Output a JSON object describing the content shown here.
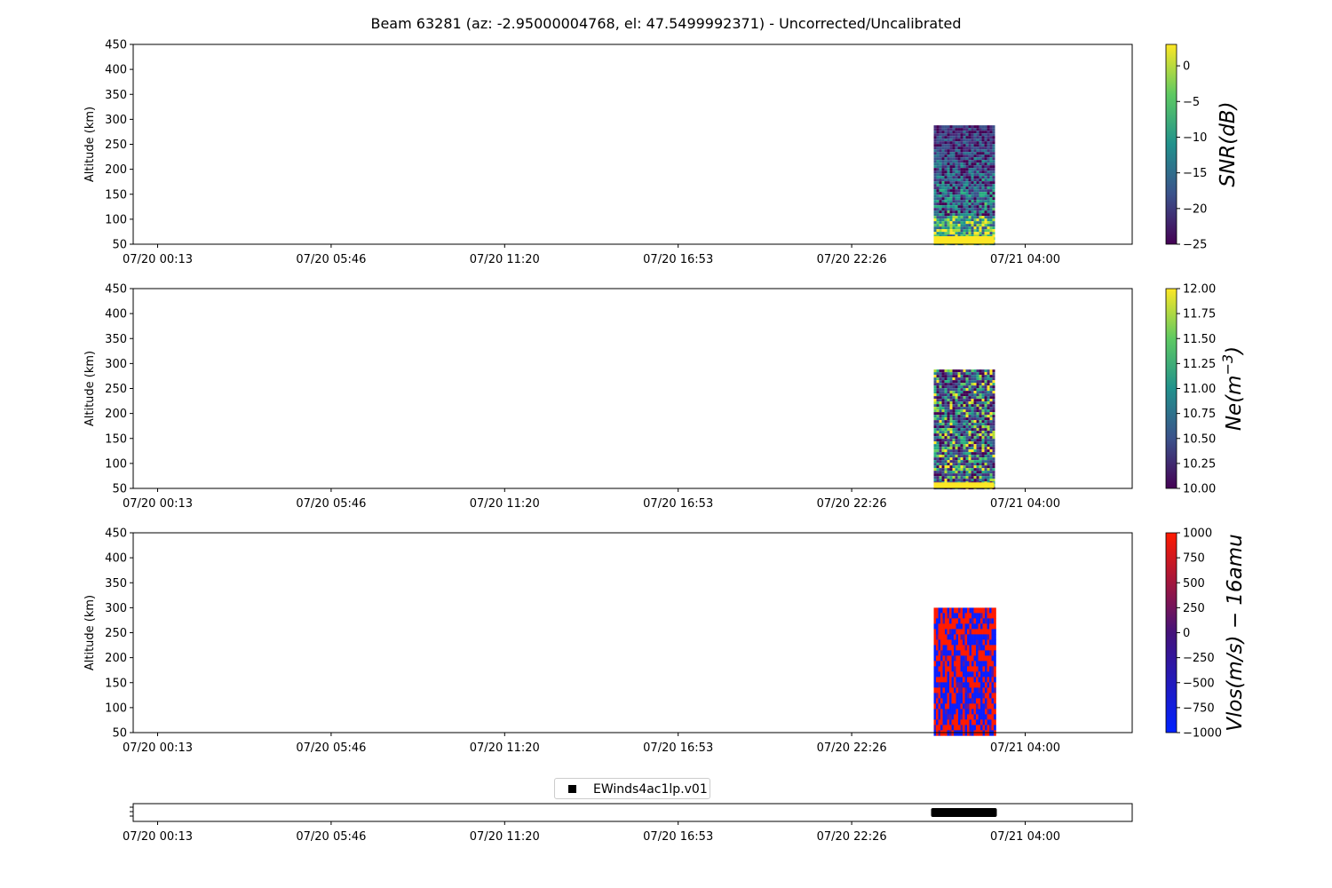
{
  "figure": {
    "title": "Beam 63281 (az: -2.95000004768, el: 47.5499992371) - Uncorrected/Uncalibrated"
  },
  "chart_data": [
    {
      "type": "heatmap",
      "ylabel": "Altitude (km)",
      "ylim": [
        50,
        450
      ],
      "yticks": [
        50,
        100,
        150,
        200,
        250,
        300,
        350,
        400,
        450
      ],
      "xticks": [
        "07/20 00:13",
        "07/20 05:46",
        "07/20 11:20",
        "07/20 16:53",
        "07/20 22:26",
        "07/21 04:00"
      ],
      "data_time_range": [
        "07/21 01:04",
        "07/21 03:00"
      ],
      "data_altitude_range": [
        50,
        288
      ],
      "colorbar": {
        "label": "SNR(dB)",
        "colormap": "viridis",
        "range": [
          -25,
          3
        ],
        "ticks": [
          "0",
          "−5",
          "−10",
          "−15",
          "−20",
          "−25"
        ],
        "tick_values": [
          0,
          -5,
          -10,
          -15,
          -20,
          -25
        ]
      }
    },
    {
      "type": "heatmap",
      "ylabel": "Altitude (km)",
      "ylim": [
        50,
        450
      ],
      "yticks": [
        50,
        100,
        150,
        200,
        250,
        300,
        350,
        400,
        450
      ],
      "xticks": [
        "07/20 00:13",
        "07/20 05:46",
        "07/20 11:20",
        "07/20 16:53",
        "07/20 22:26",
        "07/21 04:00"
      ],
      "data_time_range": [
        "07/21 01:04",
        "07/21 03:00"
      ],
      "data_altitude_range": [
        50,
        288
      ],
      "colorbar": {
        "label": "Ne(m^-3)",
        "colormap": "viridis",
        "range": [
          10,
          12
        ],
        "ticks": [
          "12.00",
          "11.75",
          "11.50",
          "11.25",
          "11.00",
          "10.75",
          "10.50",
          "10.25",
          "10.00"
        ],
        "tick_values": [
          12,
          11.75,
          11.5,
          11.25,
          11,
          10.75,
          10.5,
          10.25,
          10
        ]
      }
    },
    {
      "type": "heatmap",
      "ylabel": "Altitude (km)",
      "ylim": [
        50,
        450
      ],
      "yticks": [
        50,
        100,
        150,
        200,
        250,
        300,
        350,
        400,
        450
      ],
      "xticks": [
        "07/20 00:13",
        "07/20 05:46",
        "07/20 11:20",
        "07/20 16:53",
        "07/20 22:26",
        "07/21 04:00"
      ],
      "data_time_range": [
        "07/21 01:04",
        "07/21 03:00"
      ],
      "data_altitude_range": [
        50,
        300
      ],
      "colorbar": {
        "label": "Vlos(m/s) − 16amu",
        "colormap": "blue-red",
        "range": [
          -1000,
          1000
        ],
        "ticks": [
          "1000",
          "750",
          "500",
          "250",
          "0",
          "−250",
          "−500",
          "−750",
          "−1000"
        ],
        "tick_values": [
          1000,
          750,
          500,
          250,
          0,
          -250,
          -500,
          -750,
          -1000
        ]
      }
    },
    {
      "type": "scatter",
      "xticks": [
        "07/20 00:13",
        "07/20 05:46",
        "07/20 11:20",
        "07/20 16:53",
        "07/20 22:26",
        "07/21 04:00"
      ],
      "series": [
        {
          "name": "EWinds4ac1lp.v01",
          "time_range": [
            "07/21 01:04",
            "07/21 03:00"
          ],
          "color": "#000000"
        }
      ]
    }
  ]
}
